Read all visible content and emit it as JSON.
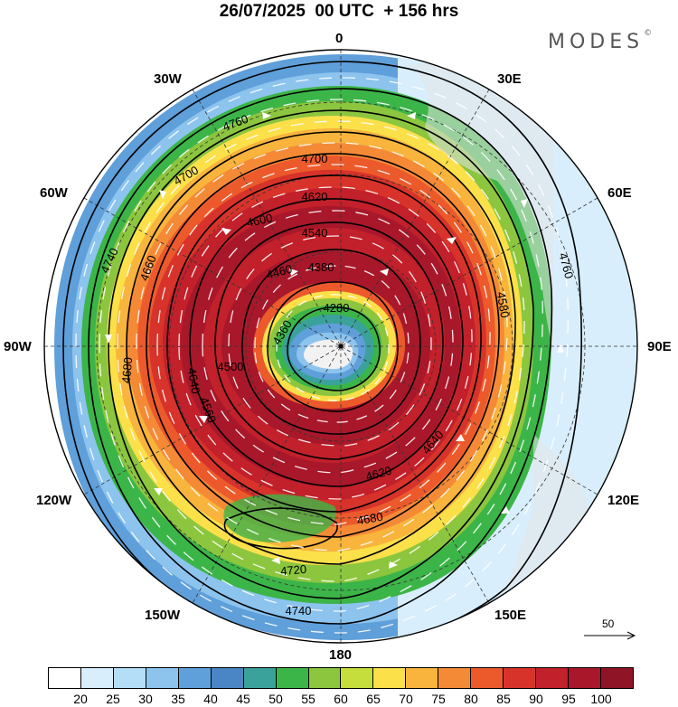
{
  "header": {
    "date": "26/07/2025",
    "time": "00 UTC",
    "lead": "+ 156 hrs"
  },
  "brand": {
    "name": "MODES",
    "mark": "©"
  },
  "longitude_labels": {
    "north": "0",
    "n30e": "30E",
    "n60e": "60E",
    "east": "90E",
    "s120e": "120E",
    "s150e": "150E",
    "south": "180",
    "s150w": "150W",
    "s120w": "120W",
    "west": "90W",
    "n60w": "60W",
    "n30w": "30W"
  },
  "contour_labels": [
    "4760",
    "4700",
    "4620",
    "4600",
    "4540",
    "4460",
    "4380",
    "4280",
    "4360",
    "4660",
    "4740",
    "4700",
    "4680",
    "4640",
    "4560",
    "4500",
    "4580",
    "4620",
    "4640",
    "4680",
    "4720",
    "4740",
    "4760"
  ],
  "vector_scale": {
    "value": "50"
  },
  "colorbar": {
    "colors": [
      "#ffffff",
      "#d8eefc",
      "#b4def8",
      "#8cc4ee",
      "#5f9fda",
      "#4a86c6",
      "#3aa29a",
      "#3cb548",
      "#8cc63e",
      "#c6de3c",
      "#fbe04a",
      "#f8b43c",
      "#f58a36",
      "#ec5a2c",
      "#d8332a",
      "#c2202a",
      "#a8182a",
      "#8e1426"
    ],
    "labels": [
      "20",
      "25",
      "30",
      "35",
      "40",
      "45",
      "50",
      "55",
      "60",
      "65",
      "70",
      "75",
      "80",
      "85",
      "90",
      "95",
      "100"
    ]
  },
  "colors": {
    "pole_white": "#f2f2f2",
    "land_gray": "#e6e6e6"
  }
}
